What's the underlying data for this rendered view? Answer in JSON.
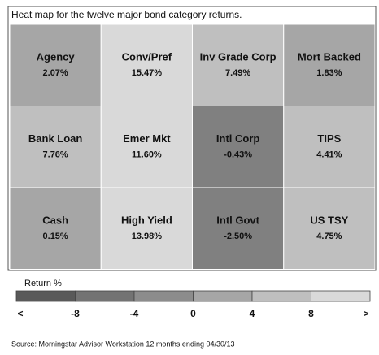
{
  "chart_data": {
    "type": "heatmap",
    "title": "Heat map for the twelve major bond category returns.",
    "categories": [
      "Agency",
      "Conv/Pref",
      "Inv Grade Corp",
      "Mort Backed",
      "Bank Loan",
      "Emer Mkt",
      "Intl Corp",
      "TIPS",
      "Cash",
      "High Yield",
      "Intl Govt",
      "US TSY"
    ],
    "values": [
      2.07,
      15.47,
      7.49,
      1.83,
      7.76,
      11.6,
      -0.43,
      4.41,
      0.15,
      13.98,
      -2.5,
      4.75
    ],
    "value_labels": [
      "2.07%",
      "15.47%",
      "7.49%",
      "1.83%",
      "7.76%",
      "11.60%",
      "-0.43%",
      "4.41%",
      "0.15%",
      "13.98%",
      "-2.50%",
      "4.75%"
    ],
    "colors": [
      "#a6a6a6",
      "#d9d9d9",
      "#bfbfbf",
      "#a6a6a6",
      "#bfbfbf",
      "#d9d9d9",
      "#808080",
      "#bfbfbf",
      "#a6a6a6",
      "#d9d9d9",
      "#808080",
      "#bfbfbf"
    ],
    "legend": {
      "title": "Return %",
      "ticks": [
        -8,
        -4,
        0,
        4,
        8
      ],
      "low_label": "<",
      "high_label": ">",
      "colors": [
        "#595959",
        "#737373",
        "#8c8c8c",
        "#a6a6a6",
        "#bfbfbf",
        "#d9d9d9"
      ]
    },
    "source": "Source: Morningstar Advisor Workstation 12 months ending 04/30/13"
  }
}
